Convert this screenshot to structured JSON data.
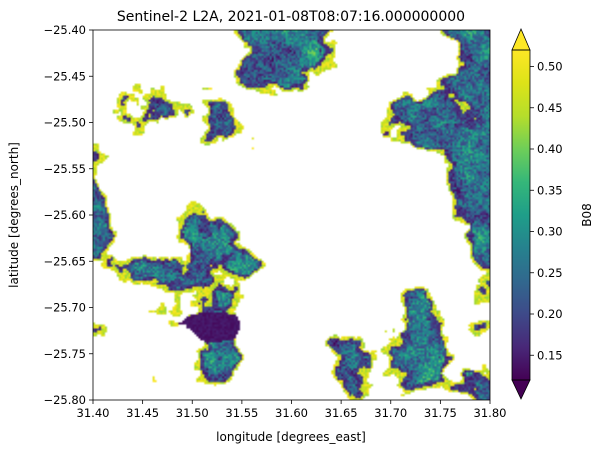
{
  "chart_data": {
    "type": "heatmap",
    "title": "Sentinel-2 L2A, 2021-01-08T08:07:16.000000000",
    "xlabel": "longitude [degrees_east]",
    "ylabel": "latitude [degrees_north]",
    "xlim": [
      31.4,
      31.8
    ],
    "ylim": [
      -25.8,
      -25.4
    ],
    "x_ticks": [
      "31.40",
      "31.45",
      "31.50",
      "31.55",
      "31.60",
      "31.65",
      "31.70",
      "31.75",
      "31.80"
    ],
    "y_ticks": [
      "−25.40",
      "−25.45",
      "−25.50",
      "−25.55",
      "−25.60",
      "−25.65",
      "−25.70",
      "−25.75",
      "−25.80"
    ],
    "colorbar": {
      "label": "B08",
      "colormap": "viridis",
      "range": [
        0.12,
        0.52
      ],
      "ticks": [
        "0.15",
        "0.20",
        "0.25",
        "0.30",
        "0.35",
        "0.40",
        "0.45",
        "0.50"
      ],
      "extend": "both"
    },
    "missing_values_color": "#ffffff",
    "grid": false
  }
}
